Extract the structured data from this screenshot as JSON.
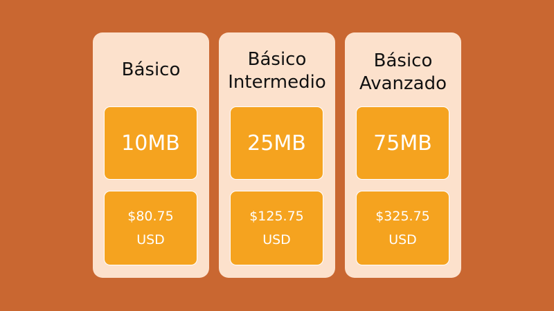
{
  "colors": {
    "background": "#C96731",
    "card": "#FCE1CC",
    "box": "#F5A31F"
  },
  "plans": [
    {
      "name_lines": [
        "Básico",
        ""
      ],
      "size": "10MB",
      "price": "$80.75",
      "currency": "USD"
    },
    {
      "name_lines": [
        "Básico",
        "Intermedio"
      ],
      "size": "25MB",
      "price": "$125.75",
      "currency": "USD"
    },
    {
      "name_lines": [
        "Básico",
        "Avanzado"
      ],
      "size": "75MB",
      "price": "$325.75",
      "currency": "USD"
    }
  ]
}
